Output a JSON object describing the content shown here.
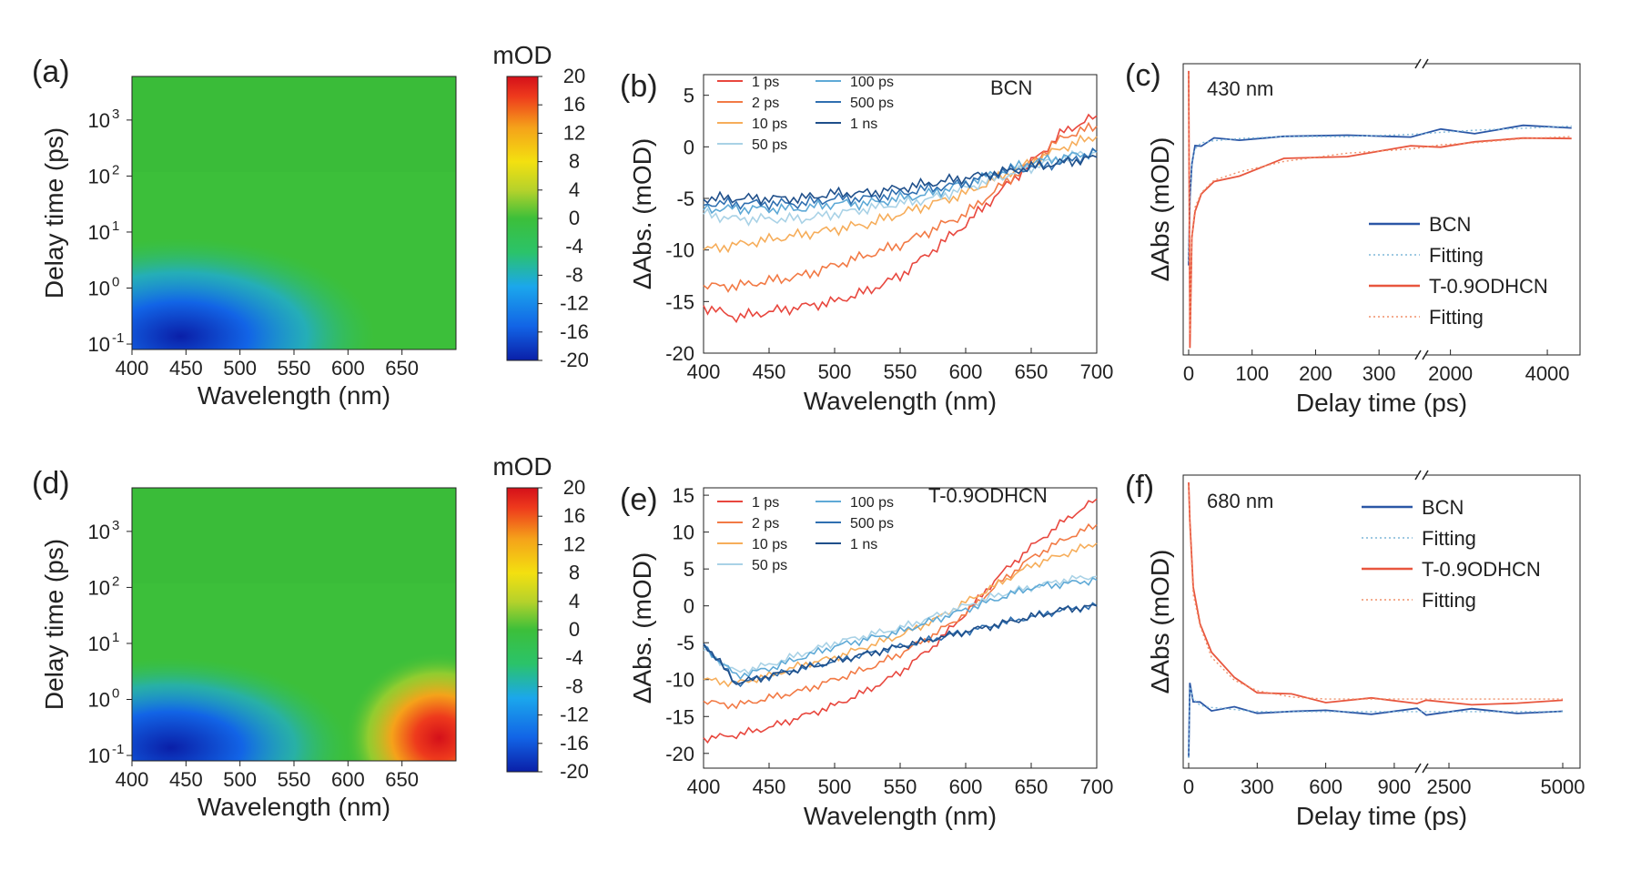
{
  "chart_data": [
    {
      "panel": "(a)",
      "type": "heatmap",
      "xlabel": "Wavelength (nm)",
      "ylabel": "Delay time (ps)",
      "x_ticks": [
        "400",
        "450",
        "500",
        "550",
        "600",
        "650"
      ],
      "xlim": [
        400,
        700
      ],
      "y_scale": "log",
      "y_ticks": [
        "10",
        "10",
        "10",
        "10",
        "10"
      ],
      "y_tick_exponents": [
        "-1",
        "0",
        "1",
        "2",
        "3"
      ],
      "ylim": [
        0.08,
        6000
      ],
      "colorbar": {
        "title": "mOD",
        "ticks": [
          "20",
          "16",
          "12",
          "8",
          "4",
          "0",
          "-4",
          "-8",
          "-12",
          "-16",
          "-20"
        ],
        "range": [
          -20,
          20
        ],
        "colors": [
          "#0a1fa8",
          "#1264e6",
          "#1ba7ec",
          "#2bc36a",
          "#3cbf3a",
          "#b6d22b",
          "#f3e010",
          "#f5a21a",
          "#ee3a1c",
          "#d4101a"
        ]
      },
      "features": "Strong negative band (-20 mOD) below 550 nm at short delays (<10 ps), decaying to about -2 mOD; rest near 0."
    },
    {
      "panel": "(b)",
      "type": "line",
      "annotation": "BCN",
      "xlabel": "Wavelength (nm)",
      "ylabel": "ΔAbs. (mOD)",
      "xlim": [
        400,
        700
      ],
      "ylim": [
        -20,
        7
      ],
      "x_ticks": [
        "400",
        "450",
        "500",
        "550",
        "600",
        "650",
        "700"
      ],
      "y_ticks": [
        "5",
        "0",
        "-5",
        "-10",
        "-15",
        "-20"
      ],
      "x": [
        400,
        425,
        450,
        475,
        500,
        525,
        550,
        575,
        600,
        625,
        650,
        675,
        700
      ],
      "series": [
        {
          "name": "1 ps",
          "color": "#e8473e",
          "values": [
            -15.5,
            -16.5,
            -16,
            -15.5,
            -15,
            -14,
            -12.5,
            -10,
            -7.5,
            -4.5,
            -1.5,
            1.5,
            3
          ]
        },
        {
          "name": "2 ps",
          "color": "#f27a45",
          "values": [
            -13.5,
            -13.5,
            -13,
            -12.5,
            -11.5,
            -10.5,
            -9.5,
            -8,
            -6.5,
            -4,
            -1.5,
            1,
            2
          ]
        },
        {
          "name": "10 ps",
          "color": "#f6ad5a",
          "values": [
            -10,
            -9.5,
            -9,
            -8.5,
            -8,
            -7.5,
            -6.5,
            -5.5,
            -4.5,
            -3,
            -1.5,
            0,
            1
          ]
        },
        {
          "name": "50 ps",
          "color": "#a9d2e6",
          "values": [
            -6.5,
            -7,
            -7,
            -7,
            -6.5,
            -6,
            -5.5,
            -5,
            -4,
            -3,
            -2,
            -1,
            -0.5
          ]
        },
        {
          "name": "100 ps",
          "color": "#5ea9d6",
          "values": [
            -6,
            -6,
            -6,
            -6,
            -5.5,
            -5.5,
            -5,
            -4.5,
            -3.5,
            -2.5,
            -1.5,
            -1,
            -0.5
          ]
        },
        {
          "name": "500 ps",
          "color": "#2f6fb0",
          "values": [
            -5.5,
            -5.5,
            -5.5,
            -5.5,
            -5,
            -5,
            -4.5,
            -4,
            -3.5,
            -2.5,
            -2,
            -1.5,
            -0.5
          ]
        },
        {
          "name": "1 ns",
          "color": "#1f4f8a",
          "values": [
            -5,
            -5,
            -5,
            -5,
            -4.5,
            -4.5,
            -4,
            -3.5,
            -3,
            -2.5,
            -2,
            -1.5,
            -1
          ]
        }
      ]
    },
    {
      "panel": "(c)",
      "type": "line",
      "annotation": "430 nm",
      "xlabel": "Delay time (ps)",
      "ylabel": "ΔAbs (mOD)",
      "x_axis_broken": true,
      "x_ticks": [
        "0",
        "100",
        "200",
        "300",
        "2000",
        "4000"
      ],
      "x": [
        0,
        2,
        5,
        10,
        20,
        40,
        80,
        150,
        250,
        350,
        1800,
        2500,
        3500,
        4500
      ],
      "series": [
        {
          "name": "BCN",
          "color": "#2b57a6",
          "values": [
            -0.62,
            -0.3,
            -0.12,
            -0.06,
            -0.03,
            -0.02,
            -0.01,
            0,
            0,
            0.01,
            0.02,
            0.03,
            0.04,
            0.05
          ]
        },
        {
          "name": "Fitting",
          "color": "#7fb7d8",
          "style": "dotted",
          "values": [
            -0.6,
            -0.28,
            -0.12,
            -0.06,
            -0.03,
            -0.02,
            -0.01,
            0,
            0,
            0.01,
            0.02,
            0.03,
            0.04,
            0.05
          ]
        },
        {
          "name": "T-0.9ODHCN",
          "color": "#e8563e",
          "values": [
            0.3,
            -1.0,
            -0.5,
            -0.35,
            -0.28,
            -0.22,
            -0.18,
            -0.12,
            -0.08,
            -0.06,
            -0.04,
            -0.03,
            -0.01,
            0
          ]
        },
        {
          "name": "Fitting",
          "color": "#f0906a",
          "style": "dotted",
          "values": [
            0.3,
            -0.95,
            -0.48,
            -0.34,
            -0.27,
            -0.21,
            -0.17,
            -0.12,
            -0.08,
            -0.06,
            -0.04,
            -0.03,
            -0.01,
            0
          ]
        }
      ]
    },
    {
      "panel": "(d)",
      "type": "heatmap",
      "xlabel": "Wavelength (nm)",
      "ylabel": "Delay time (ps)",
      "x_ticks": [
        "400",
        "450",
        "500",
        "550",
        "600",
        "650"
      ],
      "xlim": [
        400,
        700
      ],
      "y_scale": "log",
      "y_ticks": [
        "10",
        "10",
        "10",
        "10",
        "10"
      ],
      "y_tick_exponents": [
        "-1",
        "0",
        "1",
        "2",
        "3"
      ],
      "ylim": [
        0.08,
        6000
      ],
      "colorbar": {
        "title": "mOD",
        "ticks": [
          "20",
          "16",
          "12",
          "8",
          "4",
          "0",
          "-4",
          "-8",
          "-12",
          "-16",
          "-20"
        ],
        "range": [
          -20,
          20
        ],
        "colors": [
          "#0a1fa8",
          "#1264e6",
          "#1ba7ec",
          "#2bc36a",
          "#3cbf3a",
          "#b6d22b",
          "#f3e010",
          "#f5a21a",
          "#ee3a1c",
          "#d4101a"
        ]
      },
      "features": "Negative band below 550 nm at short delays, strong positive band (up to +16 mOD) near 650-700 nm at short delays."
    },
    {
      "panel": "(e)",
      "type": "line",
      "annotation": "T-0.9ODHCN",
      "xlabel": "Wavelength (nm)",
      "ylabel": "ΔAbs. (mOD)",
      "xlim": [
        400,
        700
      ],
      "ylim": [
        -22,
        16
      ],
      "x_ticks": [
        "400",
        "450",
        "500",
        "550",
        "600",
        "650",
        "700"
      ],
      "y_ticks": [
        "15",
        "10",
        "5",
        "0",
        "-5",
        "-10",
        "-15",
        "-20"
      ],
      "x": [
        400,
        425,
        450,
        475,
        500,
        525,
        550,
        575,
        600,
        625,
        650,
        675,
        700
      ],
      "series": [
        {
          "name": "1 ps",
          "color": "#e8473e",
          "values": [
            -18,
            -17.5,
            -16.5,
            -15,
            -13.5,
            -11.5,
            -9,
            -5.5,
            -1,
            4,
            8,
            11.5,
            14.5
          ]
        },
        {
          "name": "2 ps",
          "color": "#f27a45",
          "values": [
            -13,
            -13.5,
            -12.5,
            -11.5,
            -10,
            -8.5,
            -6.5,
            -4,
            -1,
            3,
            6.5,
            9,
            11
          ]
        },
        {
          "name": "10 ps",
          "color": "#f6ad5a",
          "values": [
            -10,
            -10.5,
            -9.5,
            -8,
            -7,
            -5.5,
            -4,
            -2,
            0.5,
            3,
            5.5,
            7,
            8.5
          ]
        },
        {
          "name": "50 ps",
          "color": "#a9d2e6",
          "values": [
            -6,
            -9,
            -8,
            -6.5,
            -5,
            -4,
            -3,
            -1.5,
            0,
            1.5,
            2.5,
            3.5,
            4
          ]
        },
        {
          "name": "100 ps",
          "color": "#5ea9d6",
          "values": [
            -5.5,
            -9.5,
            -8.5,
            -7,
            -5.5,
            -4.5,
            -3.5,
            -2,
            -0.5,
            1,
            2.5,
            3,
            3.5
          ]
        },
        {
          "name": "500 ps",
          "color": "#2f6fb0",
          "values": [
            -5,
            -10.5,
            -9.5,
            -8.5,
            -7.5,
            -6.5,
            -5.5,
            -4.5,
            -3.5,
            -2.5,
            -1.5,
            -0.5,
            0
          ]
        },
        {
          "name": "1 ns",
          "color": "#1f4f8a",
          "values": [
            -5,
            -10.5,
            -9.5,
            -8.5,
            -7.5,
            -6.5,
            -5.5,
            -4.5,
            -3.5,
            -2.5,
            -1.5,
            -0.5,
            0
          ]
        }
      ]
    },
    {
      "panel": "(f)",
      "type": "line",
      "annotation": "680 nm",
      "xlabel": "Delay time (ps)",
      "ylabel": "ΔAbs (mOD)",
      "x_axis_broken": true,
      "x_ticks": [
        "0",
        "300",
        "600",
        "900",
        "2500",
        "5000"
      ],
      "x": [
        0,
        5,
        20,
        50,
        100,
        200,
        300,
        450,
        600,
        800,
        1000,
        2000,
        3000,
        4000,
        5000
      ],
      "series": [
        {
          "name": "BCN",
          "color": "#2b57a6",
          "values": [
            -0.3,
            0.05,
            -0.02,
            -0.05,
            -0.06,
            -0.07,
            -0.08,
            -0.08,
            -0.08,
            -0.08,
            -0.08,
            -0.08,
            -0.08,
            -0.08,
            -0.08
          ]
        },
        {
          "name": "Fitting",
          "color": "#7fb7d8",
          "style": "dotted",
          "values": [
            -0.3,
            0.04,
            -0.02,
            -0.05,
            -0.06,
            -0.07,
            -0.08,
            -0.08,
            -0.08,
            -0.08,
            -0.08,
            -0.08,
            -0.08,
            -0.08,
            -0.08
          ]
        },
        {
          "name": "T-0.9ODHCN",
          "color": "#e8563e",
          "values": [
            1.0,
            0.85,
            0.5,
            0.35,
            0.2,
            0.08,
            0.02,
            -0.01,
            -0.02,
            -0.03,
            -0.03,
            -0.03,
            -0.05,
            -0.03,
            -0.04
          ]
        },
        {
          "name": "Fitting",
          "color": "#f0906a",
          "style": "dotted",
          "values": [
            1.0,
            0.8,
            0.48,
            0.33,
            0.18,
            0.07,
            0.02,
            -0.01,
            -0.02,
            -0.02,
            -0.02,
            -0.02,
            -0.02,
            -0.02,
            -0.02
          ]
        }
      ]
    }
  ]
}
